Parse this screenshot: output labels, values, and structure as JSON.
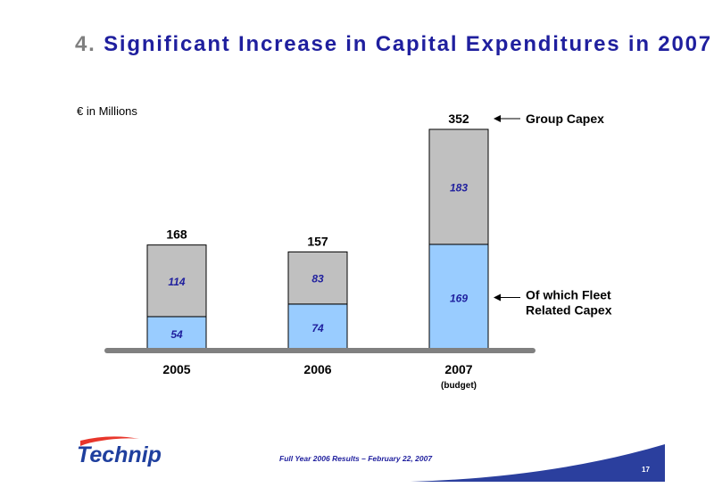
{
  "slide": {
    "title_number": "4.",
    "title_text": "Significant Increase in Capital Expenditures in 2007",
    "unit_label": "€ in Millions",
    "footer_text": "Full Year 2006 Results – February 22, 2007",
    "page_number": "17",
    "logo_text": "Technip",
    "colors": {
      "title": "#1f1f9e",
      "title_number": "#7f7f7f",
      "bar_top": "#c0c0c0",
      "bar_bottom": "#99ccff",
      "baseline": "#808080"
    }
  },
  "chart_data": {
    "type": "bar",
    "stacked": true,
    "categories": [
      "2005",
      "2006",
      "2007"
    ],
    "category_sublabels": [
      "",
      "",
      "(budget)"
    ],
    "totals": [
      168,
      157,
      352
    ],
    "series": [
      {
        "values": [
          54,
          74,
          169
        ],
        "color": "#99ccff"
      },
      {
        "values": [
          114,
          83,
          183
        ],
        "color": "#c0c0c0"
      }
    ],
    "annotations": [
      {
        "text": "Group Capex",
        "points_to": "total",
        "category": "2007"
      },
      {
        "text": "Of which Fleet Related Capex",
        "points_to": "bottom_segment",
        "category": "2007"
      }
    ],
    "ylim": [
      0,
      352
    ],
    "grid": false,
    "legend": "none"
  }
}
